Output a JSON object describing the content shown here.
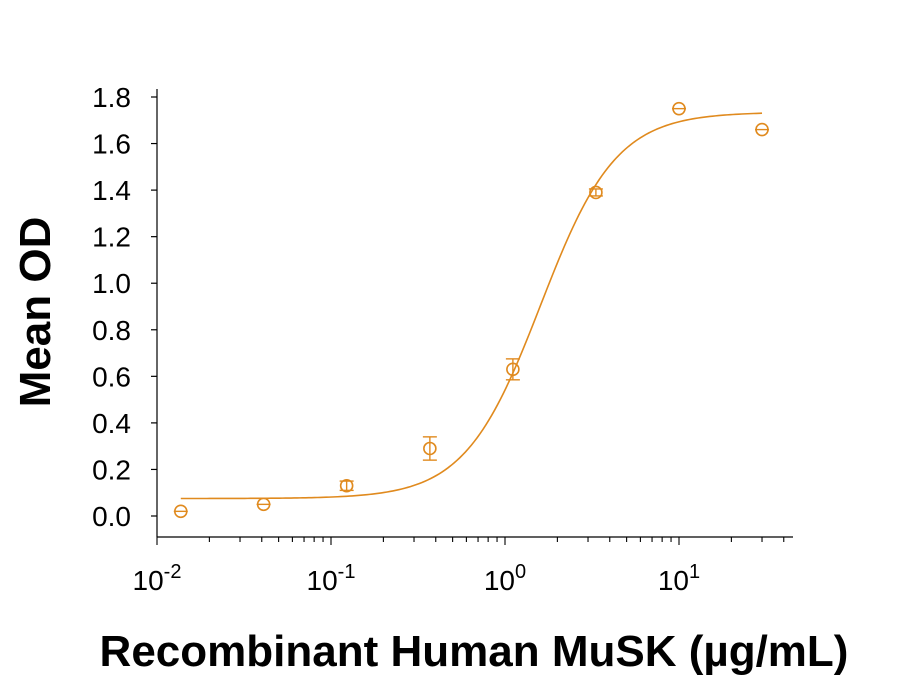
{
  "chart_data": {
    "type": "scatter",
    "title": "",
    "xlabel": "Recombinant Human MuSK (µg/mL)",
    "ylabel": "Mean OD",
    "x_scale": "log",
    "xlim": [
      0.01,
      50
    ],
    "ylim": [
      0.0,
      1.8
    ],
    "grid": false,
    "x_ticks": [
      {
        "value": 0.01,
        "base": "10",
        "exp": "-2"
      },
      {
        "value": 0.1,
        "base": "10",
        "exp": "-1"
      },
      {
        "value": 1,
        "base": "10",
        "exp": "0"
      },
      {
        "value": 10,
        "base": "10",
        "exp": "1"
      }
    ],
    "y_ticks": [
      {
        "value": 0.0,
        "label": "0.0"
      },
      {
        "value": 0.2,
        "label": "0.2"
      },
      {
        "value": 0.4,
        "label": "0.4"
      },
      {
        "value": 0.6,
        "label": "0.6"
      },
      {
        "value": 0.8,
        "label": "0.8"
      },
      {
        "value": 1.0,
        "label": "1.0"
      },
      {
        "value": 1.2,
        "label": "1.2"
      },
      {
        "value": 1.4,
        "label": "1.4"
      },
      {
        "value": 1.6,
        "label": "1.6"
      },
      {
        "value": 1.8,
        "label": "1.8"
      }
    ],
    "series": [
      {
        "marker": "open-circle",
        "color": "#E08A1E",
        "points": [
          {
            "x": 0.0137,
            "y": 0.02,
            "err": 0.0
          },
          {
            "x": 0.041,
            "y": 0.05,
            "err": 0.0
          },
          {
            "x": 0.123,
            "y": 0.13,
            "err": 0.02
          },
          {
            "x": 0.37,
            "y": 0.29,
            "err": 0.05
          },
          {
            "x": 1.11,
            "y": 0.63,
            "err": 0.045
          },
          {
            "x": 3.33,
            "y": 1.39,
            "err": 0.015
          },
          {
            "x": 10,
            "y": 1.75,
            "err": 0.0
          },
          {
            "x": 30,
            "y": 1.66,
            "err": 0.0
          }
        ],
        "fit": {
          "bottom": 0.075,
          "top": 1.735,
          "ec50": 1.6,
          "hill": 2.0
        }
      }
    ]
  }
}
